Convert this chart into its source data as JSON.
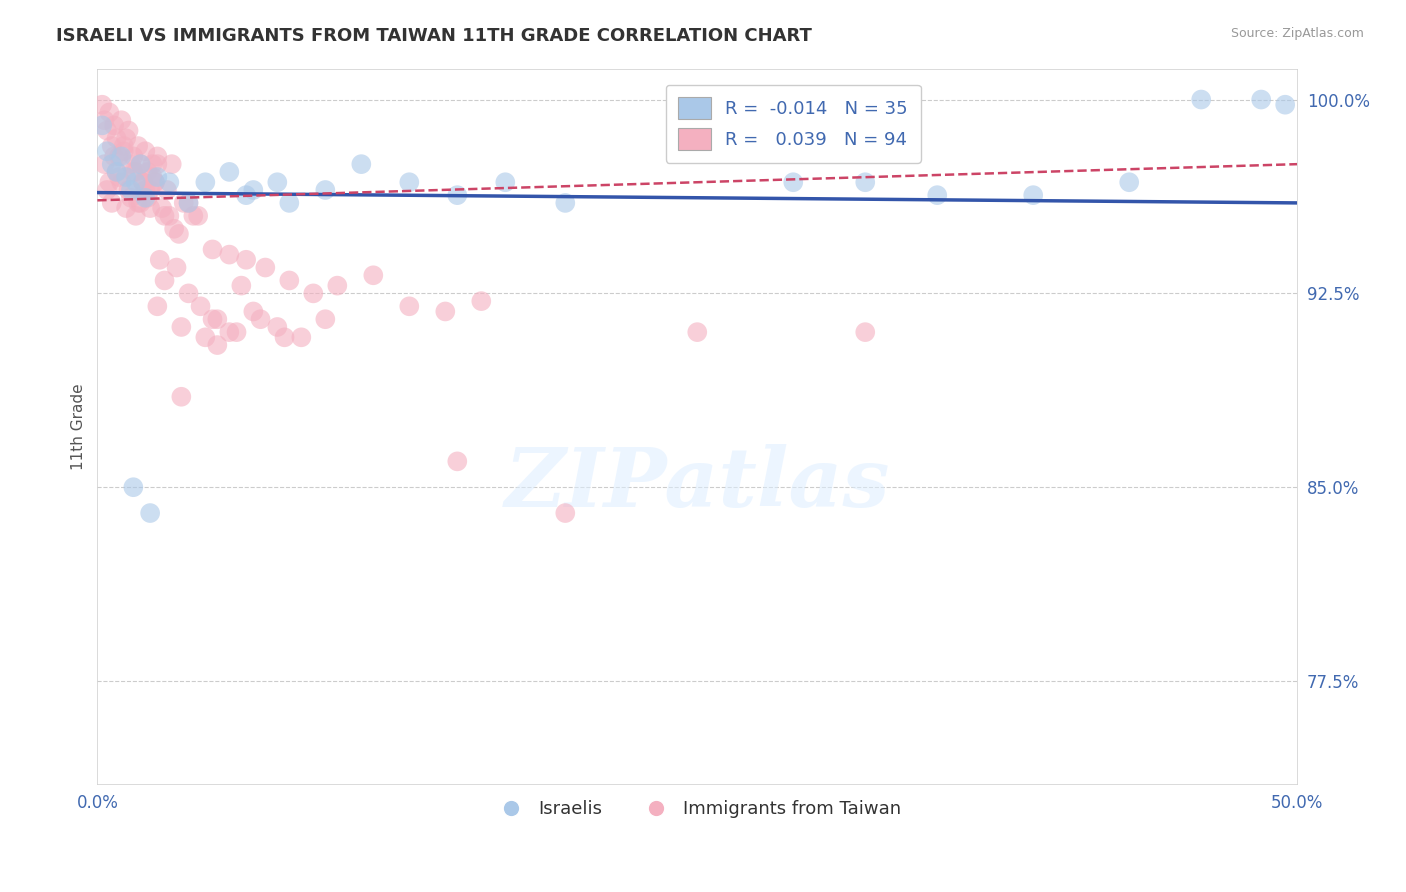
{
  "title": "ISRAELI VS IMMIGRANTS FROM TAIWAN 11TH GRADE CORRELATION CHART",
  "source": "Source: ZipAtlas.com",
  "ylabel_label": "11th Grade",
  "xlim": [
    0.0,
    0.5
  ],
  "ylim": [
    0.735,
    1.012
  ],
  "ytick_positions": [
    0.775,
    0.85,
    0.925,
    1.0
  ],
  "ytick_labels": [
    "77.5%",
    "85.0%",
    "92.5%",
    "100.0%"
  ],
  "blue_R": -0.014,
  "blue_N": 35,
  "pink_R": 0.039,
  "pink_N": 94,
  "blue_color": "#aac8e8",
  "pink_color": "#f4b0c0",
  "blue_line_color": "#3355aa",
  "pink_line_color": "#cc4466",
  "watermark_text": "ZIPatlas",
  "legend_blue_label": "Israelis",
  "legend_pink_label": "Immigrants from Taiwan",
  "blue_line_x0": 0.0,
  "blue_line_y0": 0.964,
  "blue_line_x1": 0.5,
  "blue_line_y1": 0.96,
  "pink_line_x0": 0.0,
  "pink_line_y0": 0.961,
  "pink_line_x1": 0.5,
  "pink_line_y1": 0.975,
  "blue_points_x": [
    0.002,
    0.004,
    0.006,
    0.008,
    0.01,
    0.012,
    0.014,
    0.016,
    0.018,
    0.02,
    0.025,
    0.03,
    0.038,
    0.045,
    0.055,
    0.065,
    0.08,
    0.095,
    0.11,
    0.13,
    0.15,
    0.17,
    0.195,
    0.29,
    0.32,
    0.35,
    0.39,
    0.43,
    0.46,
    0.485,
    0.495,
    0.062,
    0.075,
    0.015,
    0.022
  ],
  "blue_points_y": [
    0.99,
    0.98,
    0.975,
    0.972,
    0.978,
    0.97,
    0.965,
    0.968,
    0.975,
    0.962,
    0.97,
    0.968,
    0.96,
    0.968,
    0.972,
    0.965,
    0.96,
    0.965,
    0.975,
    0.968,
    0.963,
    0.968,
    0.96,
    0.968,
    0.968,
    0.963,
    0.963,
    0.968,
    1.0,
    1.0,
    0.998,
    0.963,
    0.968,
    0.85,
    0.84
  ],
  "pink_points_x": [
    0.002,
    0.003,
    0.004,
    0.005,
    0.006,
    0.007,
    0.008,
    0.009,
    0.01,
    0.011,
    0.012,
    0.013,
    0.014,
    0.015,
    0.016,
    0.017,
    0.018,
    0.019,
    0.02,
    0.021,
    0.022,
    0.023,
    0.024,
    0.025,
    0.003,
    0.005,
    0.007,
    0.009,
    0.011,
    0.013,
    0.015,
    0.017,
    0.019,
    0.021,
    0.023,
    0.025,
    0.027,
    0.029,
    0.031,
    0.004,
    0.006,
    0.008,
    0.01,
    0.012,
    0.014,
    0.016,
    0.018,
    0.02,
    0.022,
    0.024,
    0.028,
    0.032,
    0.036,
    0.04,
    0.03,
    0.034,
    0.038,
    0.042,
    0.048,
    0.055,
    0.062,
    0.07,
    0.08,
    0.09,
    0.1,
    0.115,
    0.13,
    0.145,
    0.16,
    0.048,
    0.055,
    0.065,
    0.075,
    0.085,
    0.095,
    0.035,
    0.045,
    0.05,
    0.058,
    0.068,
    0.078,
    0.026,
    0.028,
    0.033,
    0.038,
    0.043,
    0.05,
    0.06,
    0.025,
    0.035,
    0.15,
    0.195,
    0.25,
    0.32
  ],
  "pink_points_y": [
    0.998,
    0.992,
    0.988,
    0.995,
    0.982,
    0.99,
    0.985,
    0.978,
    0.992,
    0.98,
    0.985,
    0.988,
    0.975,
    0.978,
    0.972,
    0.982,
    0.975,
    0.968,
    0.98,
    0.972,
    0.965,
    0.975,
    0.968,
    0.978,
    0.975,
    0.968,
    0.978,
    0.97,
    0.982,
    0.965,
    0.972,
    0.96,
    0.968,
    0.962,
    0.97,
    0.975,
    0.958,
    0.965,
    0.975,
    0.965,
    0.96,
    0.972,
    0.968,
    0.958,
    0.962,
    0.955,
    0.96,
    0.965,
    0.958,
    0.968,
    0.955,
    0.95,
    0.96,
    0.955,
    0.955,
    0.948,
    0.96,
    0.955,
    0.942,
    0.94,
    0.938,
    0.935,
    0.93,
    0.925,
    0.928,
    0.932,
    0.92,
    0.918,
    0.922,
    0.915,
    0.91,
    0.918,
    0.912,
    0.908,
    0.915,
    0.912,
    0.908,
    0.905,
    0.91,
    0.915,
    0.908,
    0.938,
    0.93,
    0.935,
    0.925,
    0.92,
    0.915,
    0.928,
    0.92,
    0.885,
    0.86,
    0.84,
    0.91,
    0.91
  ]
}
